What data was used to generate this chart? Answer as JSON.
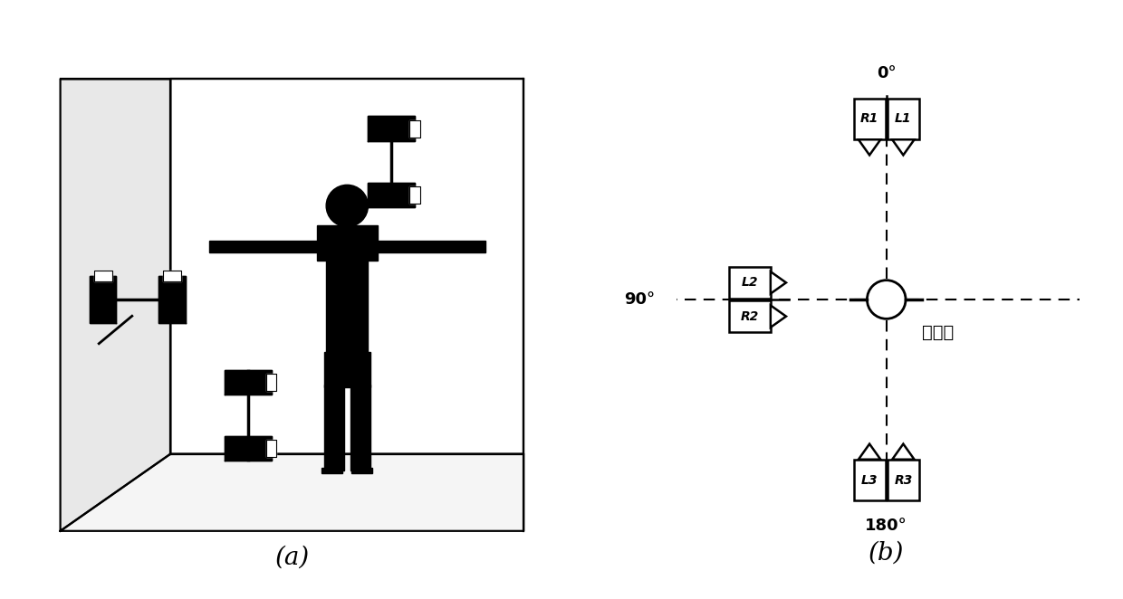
{
  "bg_color": "#ffffff",
  "label_a": "(a)",
  "label_b": "(b)",
  "angle_0": "0°",
  "angle_90": "90°",
  "angle_180": "180°",
  "subject_label": "被测者",
  "cam_top": [
    "R1",
    "L1"
  ],
  "cam_left": [
    "L2",
    "R2"
  ],
  "cam_bottom": [
    "L3",
    "R3"
  ]
}
